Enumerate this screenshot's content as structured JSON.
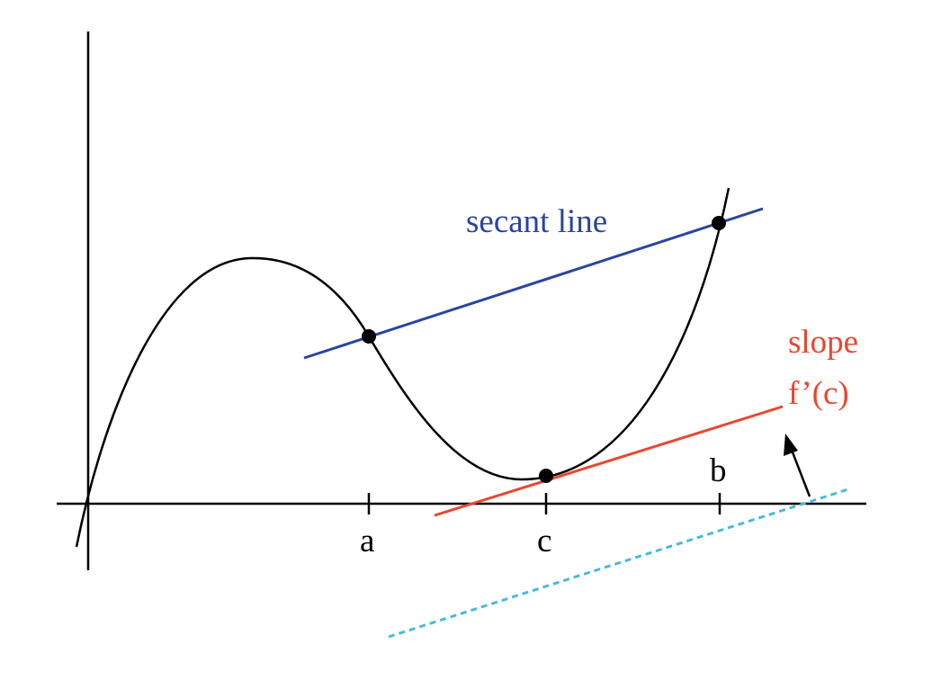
{
  "labels": {
    "secant": "secant line",
    "slope_line1": "slope",
    "slope_line2": "f’(c)",
    "tick_a": "a",
    "tick_c": "c",
    "tick_b": "b"
  },
  "colors": {
    "axis": "#000000",
    "curve": "#000000",
    "secant": "#2a45a0",
    "tangent": "#e8472f",
    "parallel": "#4bbad9",
    "arrow": "#000000"
  }
}
